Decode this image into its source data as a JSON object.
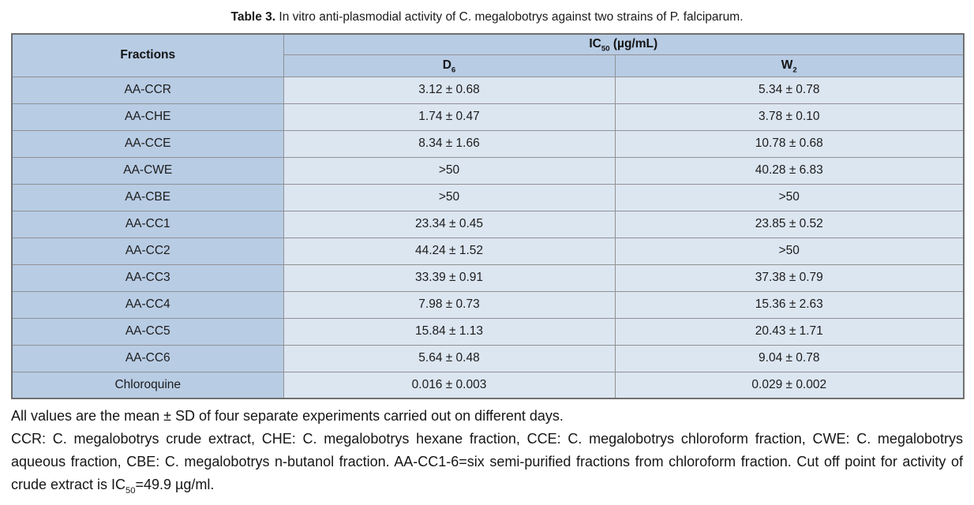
{
  "caption": {
    "label": "Table 3.",
    "text": "In vitro anti-plasmodial activity of C. megalobotrys against two strains of P. falciparum."
  },
  "table": {
    "header": {
      "fractions": "Fractions",
      "ic50_prefix": "IC",
      "ic50_sub": "50",
      "ic50_unit": " (µg/mL)",
      "d_prefix": "D",
      "d_sub": "6",
      "w_prefix": "W",
      "w_sub": "2"
    },
    "rows": [
      {
        "fraction": "AA-CCR",
        "d6": "3.12 ± 0.68",
        "w2": "5.34 ± 0.78"
      },
      {
        "fraction": "AA-CHE",
        "d6": "1.74 ± 0.47",
        "w2": "3.78 ± 0.10"
      },
      {
        "fraction": "AA-CCE",
        "d6": "8.34 ± 1.66",
        "w2": "10.78 ± 0.68"
      },
      {
        "fraction": "AA-CWE",
        "d6": ">50",
        "w2": "40.28 ± 6.83"
      },
      {
        "fraction": "AA-CBE",
        "d6": ">50",
        "w2": ">50"
      },
      {
        "fraction": "AA-CC1",
        "d6": "23.34 ± 0.45",
        "w2": "23.85 ± 0.52"
      },
      {
        "fraction": "AA-CC2",
        "d6": "44.24 ± 1.52",
        "w2": ">50"
      },
      {
        "fraction": "AA-CC3",
        "d6": "33.39 ± 0.91",
        "w2": "37.38 ± 0.79"
      },
      {
        "fraction": "AA-CC4",
        "d6": "7.98 ± 0.73",
        "w2": "15.36 ± 2.63"
      },
      {
        "fraction": "AA-CC5",
        "d6": "15.84 ± 1.13",
        "w2": "20.43 ± 1.71"
      },
      {
        "fraction": "AA-CC6",
        "d6": "5.64 ± 0.48",
        "w2": "9.04 ± 0.78"
      },
      {
        "fraction": "Chloroquine",
        "d6": "0.016 ± 0.003",
        "w2": "0.029 ± 0.002"
      }
    ]
  },
  "notes": {
    "line1": "All values are the mean ± SD of four separate experiments carried out on different days.",
    "para2_before_sub": "CCR: C. megalobotrys crude extract, CHE: C. megalobotrys hexane fraction, CCE: C. megalobotrys chloroform fraction, CWE: C. megalobotrys aqueous fraction, CBE: C. megalobotrys n-butanol fraction. AA-CC1-6=six semi-purified fractions from chloroform fraction. Cut off point for activity of crude extract is IC",
    "para2_sub": "50",
    "para2_after_sub": "=49.9 µg/ml."
  },
  "colors": {
    "header_bg": "#b8cce4",
    "cell_bg": "#dce6f1",
    "inner_border": "#909295",
    "outer_border": "#707070",
    "text": "#1c1c1c"
  }
}
